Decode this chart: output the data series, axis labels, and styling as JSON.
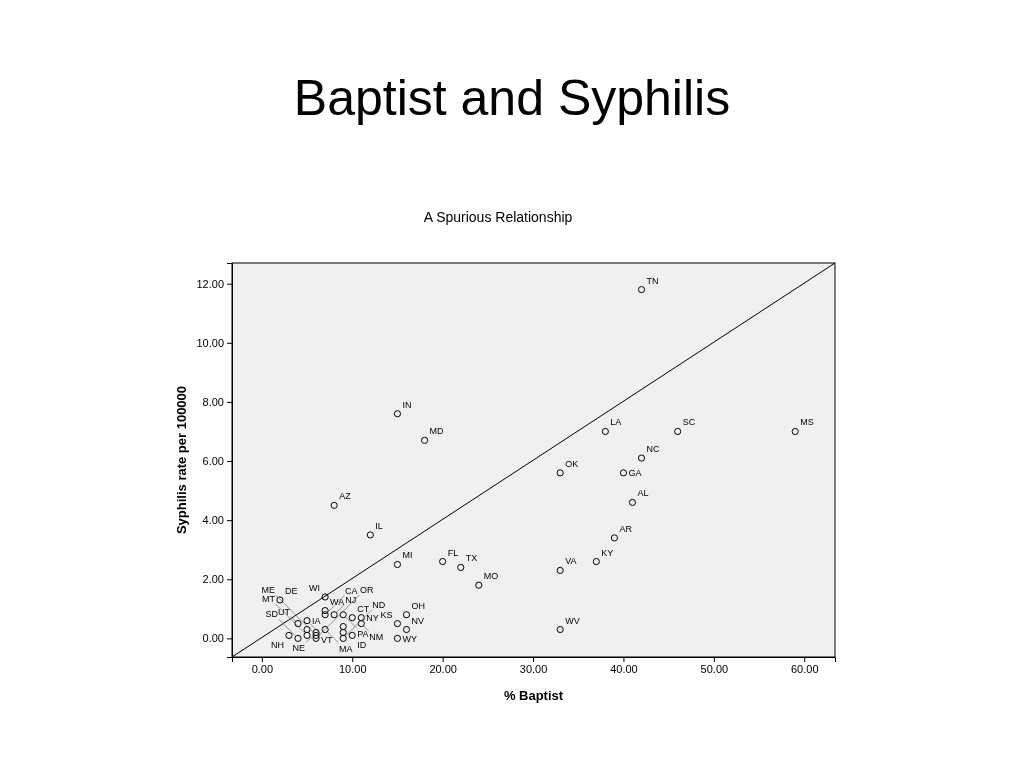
{
  "chart_data": {
    "type": "scatter",
    "title": "Baptist and Syphilis",
    "subtitle": "A Spurious Relationship",
    "xlabel": "% Baptist",
    "ylabel": "Syphilis rate per 100000",
    "xlim": [
      -3.3,
      63.4
    ],
    "ylim": [
      -0.63,
      12.7
    ],
    "xticks": [
      {
        "value": 0,
        "label": "0.00"
      },
      {
        "value": 10,
        "label": "10.00"
      },
      {
        "value": 20,
        "label": "20.00"
      },
      {
        "value": 30,
        "label": "30.00"
      },
      {
        "value": 40,
        "label": "40.00"
      },
      {
        "value": 50,
        "label": "50.00"
      },
      {
        "value": 60,
        "label": "60.00"
      }
    ],
    "yticks": [
      {
        "value": 0,
        "label": "0.00"
      },
      {
        "value": 2,
        "label": "2.00"
      },
      {
        "value": 4,
        "label": "4.00"
      },
      {
        "value": 6,
        "label": "6.00"
      },
      {
        "value": 8,
        "label": "8.00"
      },
      {
        "value": 10,
        "label": "10.00"
      },
      {
        "value": 12,
        "label": "12.00"
      }
    ],
    "marker": "circle",
    "grid": false,
    "series": [
      {
        "color": "#000000",
        "x": [
          42,
          15,
          18,
          38,
          46,
          59,
          42,
          33,
          40,
          41,
          8,
          12,
          39,
          15,
          20,
          22,
          37,
          33,
          24,
          33,
          2,
          7,
          7,
          7,
          8,
          9,
          10,
          11,
          11,
          4,
          5,
          5,
          6,
          7,
          3,
          4,
          5,
          6,
          6,
          9,
          9,
          9,
          10,
          15,
          16,
          16,
          15
        ],
        "values": [
          11.8,
          7.6,
          6.7,
          7.0,
          7.0,
          7.0,
          6.1,
          5.6,
          5.6,
          4.6,
          4.5,
          3.5,
          3.4,
          2.5,
          2.6,
          2.4,
          2.6,
          2.3,
          1.8,
          0.3,
          1.3,
          1.4,
          0.94,
          0.8,
          0.8,
          0.8,
          0.7,
          0.7,
          0.5,
          0.5,
          0.6,
          0.3,
          0.2,
          0.3,
          0.1,
          0.0,
          0.1,
          0.1,
          0.0,
          0.4,
          0.2,
          0.0,
          0.1,
          0.5,
          0.8,
          0.3,
          0.0
        ]
      },
      {
        "type": "line",
        "marker": "none",
        "color": "#000000",
        "x": [
          -3.3,
          63.4
        ],
        "values": [
          -0.63,
          12.7
        ]
      }
    ],
    "annotations": [
      {
        "text": "TN",
        "x": 42,
        "y": 11.8
      },
      {
        "text": "IN",
        "x": 15,
        "y": 7.6
      },
      {
        "text": "MD",
        "x": 18,
        "y": 6.7
      },
      {
        "text": "LA",
        "x": 38,
        "y": 7.0
      },
      {
        "text": "SC",
        "x": 46,
        "y": 7.0
      },
      {
        "text": "MS",
        "x": 59,
        "y": 7.0
      },
      {
        "text": "NC",
        "x": 42,
        "y": 6.1
      },
      {
        "text": "OK",
        "x": 33,
        "y": 5.6
      },
      {
        "text": "GA",
        "x": 40,
        "y": 5.6
      },
      {
        "text": "AL",
        "x": 41,
        "y": 4.6
      },
      {
        "text": "AZ",
        "x": 8,
        "y": 4.5
      },
      {
        "text": "IL",
        "x": 12,
        "y": 3.5
      },
      {
        "text": "AR",
        "x": 39,
        "y": 3.4
      },
      {
        "text": "MI",
        "x": 15,
        "y": 2.5
      },
      {
        "text": "FL",
        "x": 20,
        "y": 2.6
      },
      {
        "text": "TX",
        "x": 22,
        "y": 2.4
      },
      {
        "text": "KY",
        "x": 37,
        "y": 2.6
      },
      {
        "text": "VA",
        "x": 33,
        "y": 2.3
      },
      {
        "text": "MO",
        "x": 24,
        "y": 1.8
      },
      {
        "text": "WV",
        "x": 33,
        "y": 0.3
      },
      {
        "text": "DE",
        "x": 2,
        "y": 1.3
      },
      {
        "text": "WI",
        "x": 7,
        "y": 1.4
      },
      {
        "text": "WA",
        "x": 7,
        "y": 0.94
      },
      {
        "text": "CA",
        "x": 7,
        "y": 0.8
      },
      {
        "text": "NJ",
        "x": 8,
        "y": 0.8
      },
      {
        "text": "PA",
        "x": 9,
        "y": 0.8
      },
      {
        "text": "CT",
        "x": 10,
        "y": 0.7
      },
      {
        "text": "NY",
        "x": 11,
        "y": 0.7
      },
      {
        "text": "NM",
        "x": 11,
        "y": 0.5
      },
      {
        "text": "UT",
        "x": 4,
        "y": 0.5
      },
      {
        "text": "VT",
        "x": 5,
        "y": 0.6
      },
      {
        "text": "MA",
        "x": 7,
        "y": 0.3
      },
      {
        "text": "IA",
        "x": 5,
        "y": 0.3
      },
      {
        "text": "NE",
        "x": 6,
        "y": 0.2
      },
      {
        "text": "NH",
        "x": 3,
        "y": 0.1
      },
      {
        "text": "SD",
        "x": 4,
        "y": 0.0
      },
      {
        "text": "MT",
        "x": 5,
        "y": 0.1
      },
      {
        "text": "OR",
        "x": 6,
        "y": 0.0
      },
      {
        "text": "ND",
        "x": 9,
        "y": 0.0
      },
      {
        "text": "ID",
        "x": 10,
        "y": 0.1
      },
      {
        "text": "OH",
        "x": 16,
        "y": 0.8
      },
      {
        "text": "KS",
        "x": 15,
        "y": 0.5
      },
      {
        "text": "NV",
        "x": 16,
        "y": 0.3
      },
      {
        "text": "WY",
        "x": 15,
        "y": 0.0
      },
      {
        "text": "ME",
        "x": 6,
        "y": 0.1
      }
    ]
  }
}
